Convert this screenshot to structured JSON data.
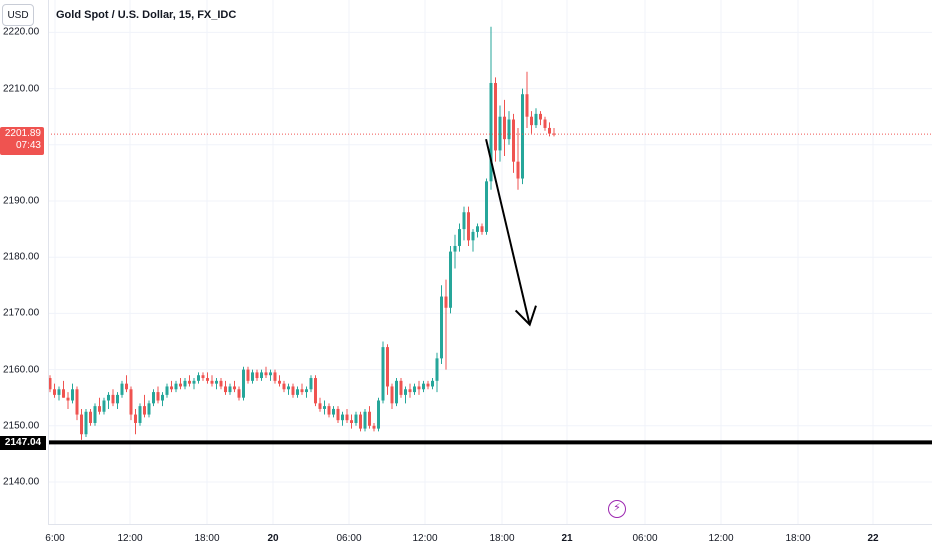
{
  "header": {
    "currency_button": "USD",
    "symbol_title": "Gold Spot / U.S. Dollar, 15, FX_IDC"
  },
  "price_axis": {
    "ticks": [
      "2220.00",
      "2210.00",
      "2200.00",
      "2190.00",
      "2180.00",
      "2170.00",
      "2160.00",
      "2150.00",
      "2140.00"
    ],
    "current_price": "2201.89",
    "countdown": "07:43",
    "hline_price": "2147.04"
  },
  "time_axis": {
    "ticks": [
      "6:00",
      "12:00",
      "18:00",
      "20",
      "06:00",
      "12:00",
      "18:00",
      "21",
      "06:00",
      "12:00",
      "18:00",
      "22"
    ]
  },
  "colors": {
    "up": "#26a69a",
    "down": "#ef5350",
    "current_price_line": "#ef5350",
    "hline": "#000000",
    "event_icon": "#9c27b0"
  },
  "icons": {
    "event": "lightning-icon"
  },
  "chart_data": {
    "type": "candlestick",
    "title": "Gold Spot / U.S. Dollar, 15, FX_IDC",
    "ylim": [
      2134,
      2223
    ],
    "grid": true,
    "current_price": 2201.89,
    "horizontal_line": 2147.04,
    "arrow_annotation": {
      "from": [
        96.9,
        2201.0
      ],
      "to": [
        106.6,
        2168.0
      ],
      "direction": "down"
    },
    "ohlc": [
      [
        2158.5,
        2159.0,
        2156.0,
        2156.5
      ],
      [
        2156.5,
        2157.5,
        2155.0,
        2155.5
      ],
      [
        2155.5,
        2157.0,
        2154.5,
        2156.5
      ],
      [
        2156.5,
        2158.0,
        2155.0,
        2155.0
      ],
      [
        2155.0,
        2156.0,
        2153.0,
        2154.5
      ],
      [
        2154.5,
        2157.5,
        2154.0,
        2156.5
      ],
      [
        2156.5,
        2157.0,
        2151.0,
        2152.0
      ],
      [
        2152.0,
        2153.0,
        2147.5,
        2148.5
      ],
      [
        2148.5,
        2153.0,
        2148.0,
        2152.5
      ],
      [
        2152.5,
        2153.0,
        2150.0,
        2150.5
      ],
      [
        2150.5,
        2154.0,
        2150.0,
        2153.5
      ],
      [
        2153.5,
        2155.0,
        2152.0,
        2152.5
      ],
      [
        2152.5,
        2155.0,
        2152.0,
        2154.5
      ],
      [
        2154.5,
        2156.0,
        2153.0,
        2155.5
      ],
      [
        2155.5,
        2156.5,
        2153.5,
        2154.0
      ],
      [
        2154.0,
        2156.0,
        2153.0,
        2155.5
      ],
      [
        2155.5,
        2158.0,
        2155.0,
        2157.5
      ],
      [
        2157.5,
        2159.0,
        2156.0,
        2156.5
      ],
      [
        2156.5,
        2157.0,
        2151.0,
        2152.0
      ],
      [
        2152.0,
        2153.0,
        2148.5,
        2150.5
      ],
      [
        2150.5,
        2154.0,
        2150.0,
        2153.5
      ],
      [
        2153.5,
        2155.5,
        2151.5,
        2152.0
      ],
      [
        2152.0,
        2154.5,
        2151.5,
        2154.0
      ],
      [
        2154.0,
        2156.5,
        2153.5,
        2156.0
      ],
      [
        2156.0,
        2157.0,
        2154.0,
        2154.5
      ],
      [
        2154.5,
        2156.0,
        2153.5,
        2155.5
      ],
      [
        2155.5,
        2157.5,
        2155.0,
        2157.0
      ],
      [
        2157.0,
        2158.0,
        2156.0,
        2156.5
      ],
      [
        2156.5,
        2158.0,
        2156.0,
        2157.5
      ],
      [
        2157.5,
        2158.5,
        2156.5,
        2157.0
      ],
      [
        2157.0,
        2158.5,
        2156.5,
        2158.0
      ],
      [
        2158.0,
        2159.0,
        2157.0,
        2157.5
      ],
      [
        2157.5,
        2158.5,
        2156.5,
        2158.0
      ],
      [
        2158.0,
        2159.5,
        2157.5,
        2159.0
      ],
      [
        2159.0,
        2159.5,
        2158.0,
        2158.5
      ],
      [
        2158.5,
        2159.5,
        2157.5,
        2158.0
      ],
      [
        2158.0,
        2159.0,
        2157.0,
        2157.5
      ],
      [
        2157.5,
        2158.5,
        2156.5,
        2158.0
      ],
      [
        2158.0,
        2158.5,
        2156.5,
        2157.0
      ],
      [
        2157.0,
        2158.0,
        2155.5,
        2156.0
      ],
      [
        2156.0,
        2157.5,
        2155.5,
        2157.0
      ],
      [
        2157.0,
        2158.0,
        2156.0,
        2156.5
      ],
      [
        2156.5,
        2157.0,
        2154.5,
        2155.0
      ],
      [
        2155.0,
        2160.5,
        2154.5,
        2160.0
      ],
      [
        2160.0,
        2160.5,
        2157.5,
        2158.0
      ],
      [
        2158.0,
        2160.0,
        2157.5,
        2159.5
      ],
      [
        2159.5,
        2160.0,
        2158.0,
        2158.5
      ],
      [
        2158.5,
        2160.0,
        2158.0,
        2159.5
      ],
      [
        2159.5,
        2160.5,
        2158.5,
        2159.0
      ],
      [
        2159.0,
        2160.0,
        2158.0,
        2159.5
      ],
      [
        2159.5,
        2160.0,
        2157.5,
        2158.0
      ],
      [
        2158.0,
        2159.0,
        2157.0,
        2157.5
      ],
      [
        2157.5,
        2158.0,
        2156.0,
        2156.5
      ],
      [
        2156.5,
        2157.5,
        2155.5,
        2157.0
      ],
      [
        2157.0,
        2157.5,
        2155.0,
        2155.5
      ],
      [
        2155.5,
        2157.0,
        2155.0,
        2156.5
      ],
      [
        2156.5,
        2157.5,
        2155.5,
        2156.0
      ],
      [
        2156.0,
        2157.0,
        2155.0,
        2156.5
      ],
      [
        2156.5,
        2159.0,
        2156.0,
        2158.5
      ],
      [
        2158.5,
        2159.0,
        2153.5,
        2154.0
      ],
      [
        2154.0,
        2155.0,
        2152.5,
        2153.0
      ],
      [
        2153.0,
        2154.5,
        2152.0,
        2153.5
      ],
      [
        2153.5,
        2154.0,
        2151.5,
        2152.0
      ],
      [
        2152.0,
        2153.5,
        2151.5,
        2153.0
      ],
      [
        2153.0,
        2153.5,
        2150.5,
        2151.0
      ],
      [
        2151.0,
        2152.5,
        2150.0,
        2152.0
      ],
      [
        2152.0,
        2153.0,
        2150.5,
        2151.0
      ],
      [
        2151.0,
        2152.0,
        2149.5,
        2150.5
      ],
      [
        2150.5,
        2152.5,
        2150.0,
        2152.0
      ],
      [
        2152.0,
        2152.5,
        2149.0,
        2149.5
      ],
      [
        2149.5,
        2153.0,
        2149.0,
        2152.5
      ],
      [
        2152.5,
        2153.5,
        2149.5,
        2150.0
      ],
      [
        2150.0,
        2150.5,
        2149.0,
        2149.5
      ],
      [
        2149.5,
        2155.0,
        2149.0,
        2154.5
      ],
      [
        2154.5,
        2165.0,
        2154.0,
        2164.0
      ],
      [
        2164.0,
        2164.5,
        2155.5,
        2157.0
      ],
      [
        2157.0,
        2157.5,
        2153.0,
        2154.0
      ],
      [
        2154.0,
        2158.5,
        2153.5,
        2158.0
      ],
      [
        2158.0,
        2158.5,
        2155.0,
        2155.5
      ],
      [
        2155.5,
        2157.0,
        2154.0,
        2156.5
      ],
      [
        2156.5,
        2157.5,
        2155.0,
        2156.0
      ],
      [
        2156.0,
        2157.5,
        2155.5,
        2157.0
      ],
      [
        2157.0,
        2158.0,
        2155.5,
        2156.5
      ],
      [
        2156.5,
        2158.0,
        2156.0,
        2157.5
      ],
      [
        2157.5,
        2158.0,
        2156.5,
        2157.0
      ],
      [
        2157.0,
        2158.5,
        2156.5,
        2158.0
      ],
      [
        2158.0,
        2163.0,
        2156.0,
        2162.0
      ],
      [
        2162.0,
        2175.0,
        2161.0,
        2173.0
      ],
      [
        2173.0,
        2176.0,
        2160.0,
        2171.0
      ],
      [
        2171.0,
        2182.0,
        2170.0,
        2181.0
      ],
      [
        2181.0,
        2184.0,
        2178.0,
        2182.0
      ],
      [
        2182.0,
        2186.0,
        2181.0,
        2185.0
      ],
      [
        2185.0,
        2189.0,
        2183.0,
        2188.0
      ],
      [
        2188.0,
        2189.0,
        2182.0,
        2183.0
      ],
      [
        2183.0,
        2185.0,
        2181.0,
        2184.5
      ],
      [
        2184.5,
        2186.0,
        2183.5,
        2185.5
      ],
      [
        2185.5,
        2186.0,
        2184.0,
        2184.5
      ],
      [
        2184.5,
        2194.0,
        2184.0,
        2193.5
      ],
      [
        2193.5,
        2221.0,
        2192.0,
        2211.0
      ],
      [
        2211.0,
        2212.0,
        2197.0,
        2199.0
      ],
      [
        2199.0,
        2207.0,
        2197.0,
        2205.0
      ],
      [
        2205.0,
        2208.0,
        2198.0,
        2201.0
      ],
      [
        2201.0,
        2206.0,
        2200.0,
        2204.5
      ],
      [
        2204.5,
        2205.5,
        2195.0,
        2197.0
      ],
      [
        2197.0,
        2203.0,
        2192.0,
        2194.0
      ],
      [
        2194.0,
        2210.0,
        2193.0,
        2209.0
      ],
      [
        2209.0,
        2213.0,
        2203.0,
        2205.0
      ],
      [
        2205.0,
        2206.0,
        2202.0,
        2203.5
      ],
      [
        2203.5,
        2206.5,
        2203.0,
        2205.5
      ],
      [
        2205.5,
        2206.0,
        2203.5,
        2204.5
      ],
      [
        2204.5,
        2205.0,
        2202.5,
        2203.0
      ],
      [
        2203.0,
        2204.0,
        2201.5,
        2202.0
      ],
      [
        2202.0,
        2203.0,
        2201.5,
        2201.89
      ]
    ]
  }
}
